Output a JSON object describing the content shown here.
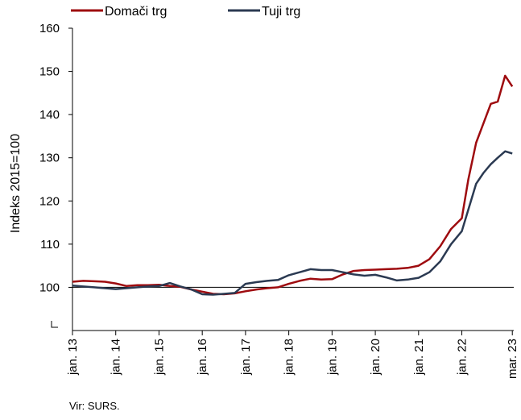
{
  "chart_data": {
    "type": "line",
    "ylabel": "Indeks 2015=100",
    "ylim": [
      90,
      160
    ],
    "yticks": [
      160,
      150,
      140,
      130,
      120,
      110,
      100
    ],
    "y_axis_break": true,
    "grid": false,
    "reference_line": 100,
    "legend_position": "top",
    "xlim": [
      2013.0,
      2023.2
    ],
    "xtick_labels": [
      "jan. 13",
      "jan. 14",
      "jan. 15",
      "jan. 16",
      "jan. 17",
      "jan. 18",
      "jan. 19",
      "jan. 20",
      "jan. 21",
      "jan. 22",
      "mar. 23"
    ],
    "xtick_positions": [
      2013.0,
      2014.0,
      2015.0,
      2016.0,
      2017.0,
      2018.0,
      2019.0,
      2020.0,
      2021.0,
      2022.0,
      2023.1667
    ],
    "series": [
      {
        "name": "Domači trg",
        "color": "#9e0b0f",
        "points": [
          [
            2013.0,
            101.3
          ],
          [
            2013.25,
            101.5
          ],
          [
            2013.5,
            101.4
          ],
          [
            2013.75,
            101.3
          ],
          [
            2014.0,
            100.9
          ],
          [
            2014.25,
            100.3
          ],
          [
            2014.5,
            100.5
          ],
          [
            2014.75,
            100.5
          ],
          [
            2015.0,
            100.6
          ],
          [
            2015.25,
            100.3
          ],
          [
            2015.5,
            100.1
          ],
          [
            2015.75,
            99.5
          ],
          [
            2016.0,
            99.0
          ],
          [
            2016.25,
            98.5
          ],
          [
            2016.5,
            98.4
          ],
          [
            2016.75,
            98.6
          ],
          [
            2017.0,
            99.1
          ],
          [
            2017.25,
            99.5
          ],
          [
            2017.5,
            99.8
          ],
          [
            2017.75,
            100.0
          ],
          [
            2018.0,
            100.8
          ],
          [
            2018.25,
            101.5
          ],
          [
            2018.5,
            102.0
          ],
          [
            2018.75,
            101.8
          ],
          [
            2019.0,
            101.9
          ],
          [
            2019.25,
            103.0
          ],
          [
            2019.5,
            103.8
          ],
          [
            2019.75,
            104.0
          ],
          [
            2020.0,
            104.1
          ],
          [
            2020.25,
            104.2
          ],
          [
            2020.5,
            104.3
          ],
          [
            2020.75,
            104.5
          ],
          [
            2021.0,
            105.0
          ],
          [
            2021.25,
            106.5
          ],
          [
            2021.5,
            109.5
          ],
          [
            2021.75,
            113.5
          ],
          [
            2022.0,
            116.0
          ],
          [
            2022.15,
            125.0
          ],
          [
            2022.33,
            133.5
          ],
          [
            2022.5,
            138.0
          ],
          [
            2022.67,
            142.5
          ],
          [
            2022.83,
            143.0
          ],
          [
            2023.0,
            149.0
          ],
          [
            2023.1667,
            146.5
          ]
        ]
      },
      {
        "name": "Tuji trg",
        "color": "#2b3a52",
        "points": [
          [
            2013.0,
            100.4
          ],
          [
            2013.25,
            100.2
          ],
          [
            2013.5,
            100.0
          ],
          [
            2013.75,
            99.8
          ],
          [
            2014.0,
            99.6
          ],
          [
            2014.25,
            99.8
          ],
          [
            2014.5,
            100.0
          ],
          [
            2014.75,
            100.2
          ],
          [
            2015.0,
            100.3
          ],
          [
            2015.25,
            101.0
          ],
          [
            2015.5,
            100.2
          ],
          [
            2015.75,
            99.5
          ],
          [
            2016.0,
            98.4
          ],
          [
            2016.25,
            98.3
          ],
          [
            2016.5,
            98.5
          ],
          [
            2016.75,
            98.7
          ],
          [
            2017.0,
            100.8
          ],
          [
            2017.25,
            101.2
          ],
          [
            2017.5,
            101.5
          ],
          [
            2017.75,
            101.7
          ],
          [
            2018.0,
            102.8
          ],
          [
            2018.25,
            103.5
          ],
          [
            2018.5,
            104.2
          ],
          [
            2018.75,
            104.0
          ],
          [
            2019.0,
            104.0
          ],
          [
            2019.25,
            103.5
          ],
          [
            2019.5,
            103.0
          ],
          [
            2019.75,
            102.7
          ],
          [
            2020.0,
            102.9
          ],
          [
            2020.25,
            102.3
          ],
          [
            2020.5,
            101.6
          ],
          [
            2020.75,
            101.8
          ],
          [
            2021.0,
            102.2
          ],
          [
            2021.25,
            103.5
          ],
          [
            2021.5,
            106.0
          ],
          [
            2021.75,
            110.0
          ],
          [
            2022.0,
            113.0
          ],
          [
            2022.15,
            118.0
          ],
          [
            2022.33,
            124.0
          ],
          [
            2022.5,
            126.5
          ],
          [
            2022.67,
            128.5
          ],
          [
            2022.83,
            130.0
          ],
          [
            2023.0,
            131.5
          ],
          [
            2023.1667,
            131.0
          ]
        ]
      }
    ]
  },
  "source": "Vir: SURS."
}
